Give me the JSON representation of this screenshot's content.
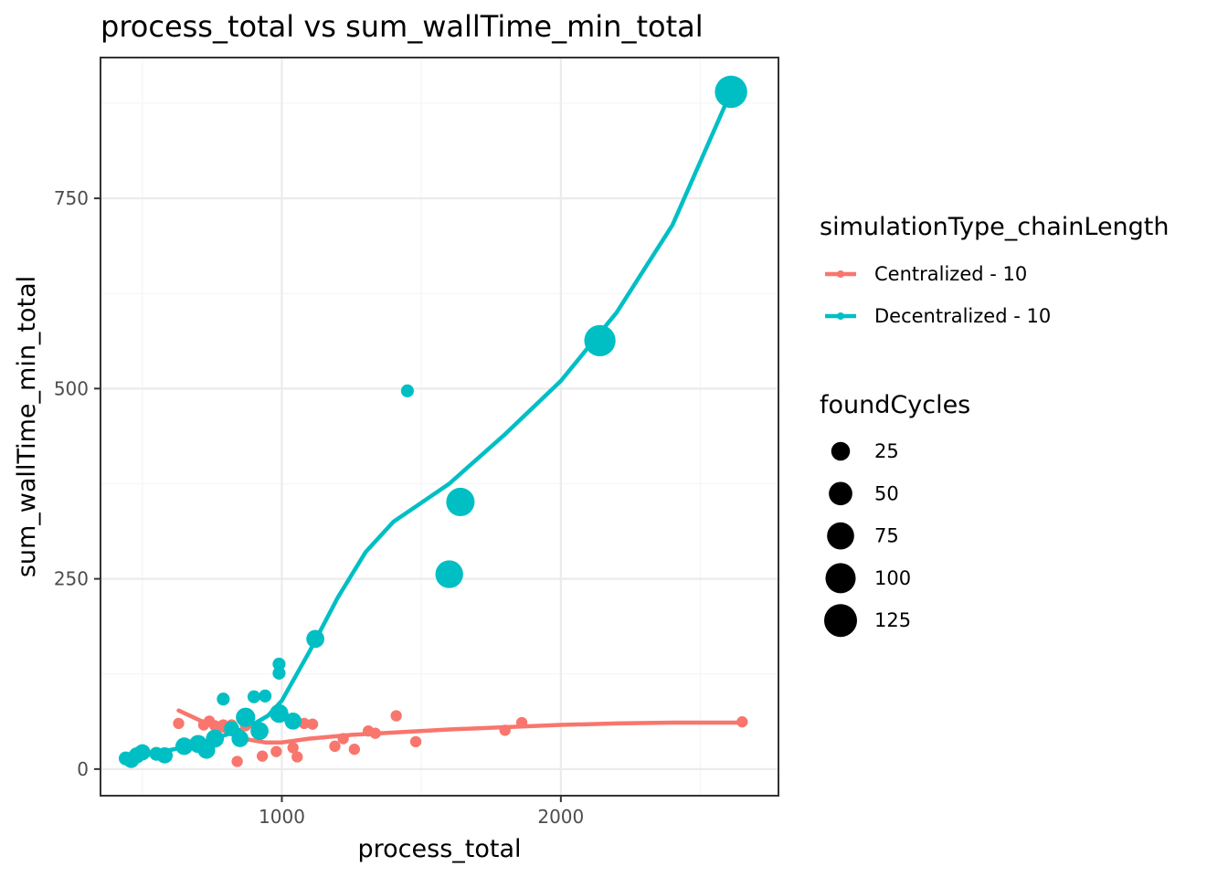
{
  "chart_data": {
    "type": "scatter",
    "title": "process_total  vs  sum_wallTime_min_total",
    "xlabel": "process_total",
    "ylabel": "sum_wallTime_min_total",
    "xlim": [
      350,
      2780
    ],
    "ylim": [
      -35,
      935
    ],
    "x_ticks": [
      1000,
      2000
    ],
    "x_tick_labels": [
      "1000",
      "2000"
    ],
    "x_minor_ticks": [
      500,
      1500,
      2500
    ],
    "y_ticks": [
      0,
      250,
      500,
      750
    ],
    "y_tick_labels": [
      "0",
      "250",
      "500",
      "750"
    ],
    "y_minor_ticks": [
      125,
      375,
      625,
      875
    ],
    "grid": true,
    "legend_placement": "right",
    "colors": {
      "centralized": "#F8766D",
      "decentralized": "#00BFC4",
      "grid_major": "#ebebeb",
      "grid_minor": "#f5f5f5",
      "panel_border": "#333333",
      "size_legend_point": "#000000"
    },
    "color_legend": {
      "title": "simulationType_chainLength",
      "entries": [
        "Centralized - 10",
        "Decentralized - 10"
      ]
    },
    "size_legend": {
      "title": "foundCycles",
      "values": [
        25,
        50,
        75,
        100,
        125
      ],
      "labels": [
        "25",
        "50",
        "75",
        "100",
        "125"
      ]
    },
    "series": [
      {
        "name": "Centralized - 10",
        "color": "#F8766D",
        "points": [
          {
            "x": 630,
            "y": 60,
            "size": 3
          },
          {
            "x": 720,
            "y": 58,
            "size": 3
          },
          {
            "x": 740,
            "y": 63,
            "size": 3
          },
          {
            "x": 760,
            "y": 57,
            "size": 3
          },
          {
            "x": 790,
            "y": 58,
            "size": 3
          },
          {
            "x": 820,
            "y": 58,
            "size": 3
          },
          {
            "x": 840,
            "y": 10,
            "size": 3
          },
          {
            "x": 870,
            "y": 57,
            "size": 3
          },
          {
            "x": 930,
            "y": 17,
            "size": 3
          },
          {
            "x": 980,
            "y": 23,
            "size": 3
          },
          {
            "x": 1040,
            "y": 28,
            "size": 3
          },
          {
            "x": 1055,
            "y": 16,
            "size": 3
          },
          {
            "x": 1080,
            "y": 60,
            "size": 3
          },
          {
            "x": 1110,
            "y": 59,
            "size": 3
          },
          {
            "x": 1190,
            "y": 30,
            "size": 3
          },
          {
            "x": 1220,
            "y": 40,
            "size": 3
          },
          {
            "x": 1260,
            "y": 26,
            "size": 3
          },
          {
            "x": 1310,
            "y": 50,
            "size": 3
          },
          {
            "x": 1335,
            "y": 47,
            "size": 3
          },
          {
            "x": 1410,
            "y": 70,
            "size": 3
          },
          {
            "x": 1480,
            "y": 36,
            "size": 3
          },
          {
            "x": 1800,
            "y": 51,
            "size": 3
          },
          {
            "x": 1860,
            "y": 61,
            "size": 3
          },
          {
            "x": 2650,
            "y": 62,
            "size": 3
          }
        ],
        "smooth": [
          {
            "x": 630,
            "y": 77
          },
          {
            "x": 700,
            "y": 65
          },
          {
            "x": 780,
            "y": 52
          },
          {
            "x": 860,
            "y": 40
          },
          {
            "x": 940,
            "y": 35
          },
          {
            "x": 1000,
            "y": 35
          },
          {
            "x": 1100,
            "y": 40
          },
          {
            "x": 1250,
            "y": 45
          },
          {
            "x": 1400,
            "y": 48
          },
          {
            "x": 1600,
            "y": 52
          },
          {
            "x": 1800,
            "y": 55
          },
          {
            "x": 2000,
            "y": 58
          },
          {
            "x": 2200,
            "y": 60
          },
          {
            "x": 2400,
            "y": 61
          },
          {
            "x": 2650,
            "y": 61
          }
        ]
      },
      {
        "name": "Decentralized - 10",
        "color": "#00BFC4",
        "points": [
          {
            "x": 440,
            "y": 14,
            "size": 8
          },
          {
            "x": 460,
            "y": 12,
            "size": 15
          },
          {
            "x": 480,
            "y": 18,
            "size": 15
          },
          {
            "x": 500,
            "y": 22,
            "size": 15
          },
          {
            "x": 550,
            "y": 20,
            "size": 8
          },
          {
            "x": 580,
            "y": 18,
            "size": 15
          },
          {
            "x": 650,
            "y": 30,
            "size": 20
          },
          {
            "x": 700,
            "y": 33,
            "size": 22
          },
          {
            "x": 730,
            "y": 25,
            "size": 20
          },
          {
            "x": 760,
            "y": 40,
            "size": 22
          },
          {
            "x": 790,
            "y": 92,
            "size": 6
          },
          {
            "x": 820,
            "y": 53,
            "size": 12
          },
          {
            "x": 850,
            "y": 40,
            "size": 18
          },
          {
            "x": 870,
            "y": 68,
            "size": 28
          },
          {
            "x": 900,
            "y": 95,
            "size": 6
          },
          {
            "x": 920,
            "y": 50,
            "size": 22
          },
          {
            "x": 940,
            "y": 96,
            "size": 6
          },
          {
            "x": 990,
            "y": 73,
            "size": 25
          },
          {
            "x": 990,
            "y": 138,
            "size": 6
          },
          {
            "x": 990,
            "y": 126,
            "size": 6
          },
          {
            "x": 1040,
            "y": 63,
            "size": 18
          },
          {
            "x": 1120,
            "y": 171,
            "size": 22
          },
          {
            "x": 1450,
            "y": 497,
            "size": 6
          },
          {
            "x": 1600,
            "y": 256,
            "size": 80
          },
          {
            "x": 1640,
            "y": 351,
            "size": 85
          },
          {
            "x": 2140,
            "y": 563,
            "size": 110
          },
          {
            "x": 2610,
            "y": 890,
            "size": 120
          }
        ],
        "smooth": [
          {
            "x": 440,
            "y": 15
          },
          {
            "x": 500,
            "y": 17
          },
          {
            "x": 600,
            "y": 25
          },
          {
            "x": 700,
            "y": 33
          },
          {
            "x": 800,
            "y": 45
          },
          {
            "x": 880,
            "y": 55
          },
          {
            "x": 950,
            "y": 70
          },
          {
            "x": 1000,
            "y": 90
          },
          {
            "x": 1100,
            "y": 155
          },
          {
            "x": 1200,
            "y": 225
          },
          {
            "x": 1300,
            "y": 285
          },
          {
            "x": 1400,
            "y": 325
          },
          {
            "x": 1500,
            "y": 350
          },
          {
            "x": 1600,
            "y": 375
          },
          {
            "x": 1800,
            "y": 440
          },
          {
            "x": 2000,
            "y": 510
          },
          {
            "x": 2200,
            "y": 600
          },
          {
            "x": 2400,
            "y": 715
          },
          {
            "x": 2610,
            "y": 890
          }
        ]
      }
    ]
  }
}
